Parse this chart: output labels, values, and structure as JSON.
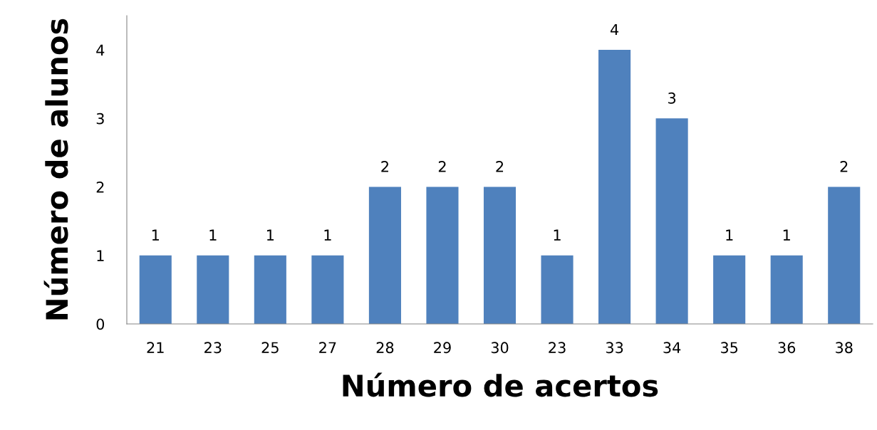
{
  "chart_data": {
    "type": "bar",
    "xlabel": "Número de acertos",
    "ylabel": "Número de alunos",
    "categories": [
      "21",
      "23",
      "25",
      "27",
      "28",
      "29",
      "30",
      "23",
      "33",
      "34",
      "35",
      "36",
      "38"
    ],
    "values": [
      1,
      1,
      1,
      1,
      2,
      2,
      2,
      1,
      4,
      3,
      1,
      1,
      2
    ],
    "color": "#4f81bd",
    "ylim": [
      0,
      4.5
    ],
    "yticks": [
      0,
      1,
      2,
      3,
      4
    ],
    "grid": false,
    "data_labels": true
  }
}
